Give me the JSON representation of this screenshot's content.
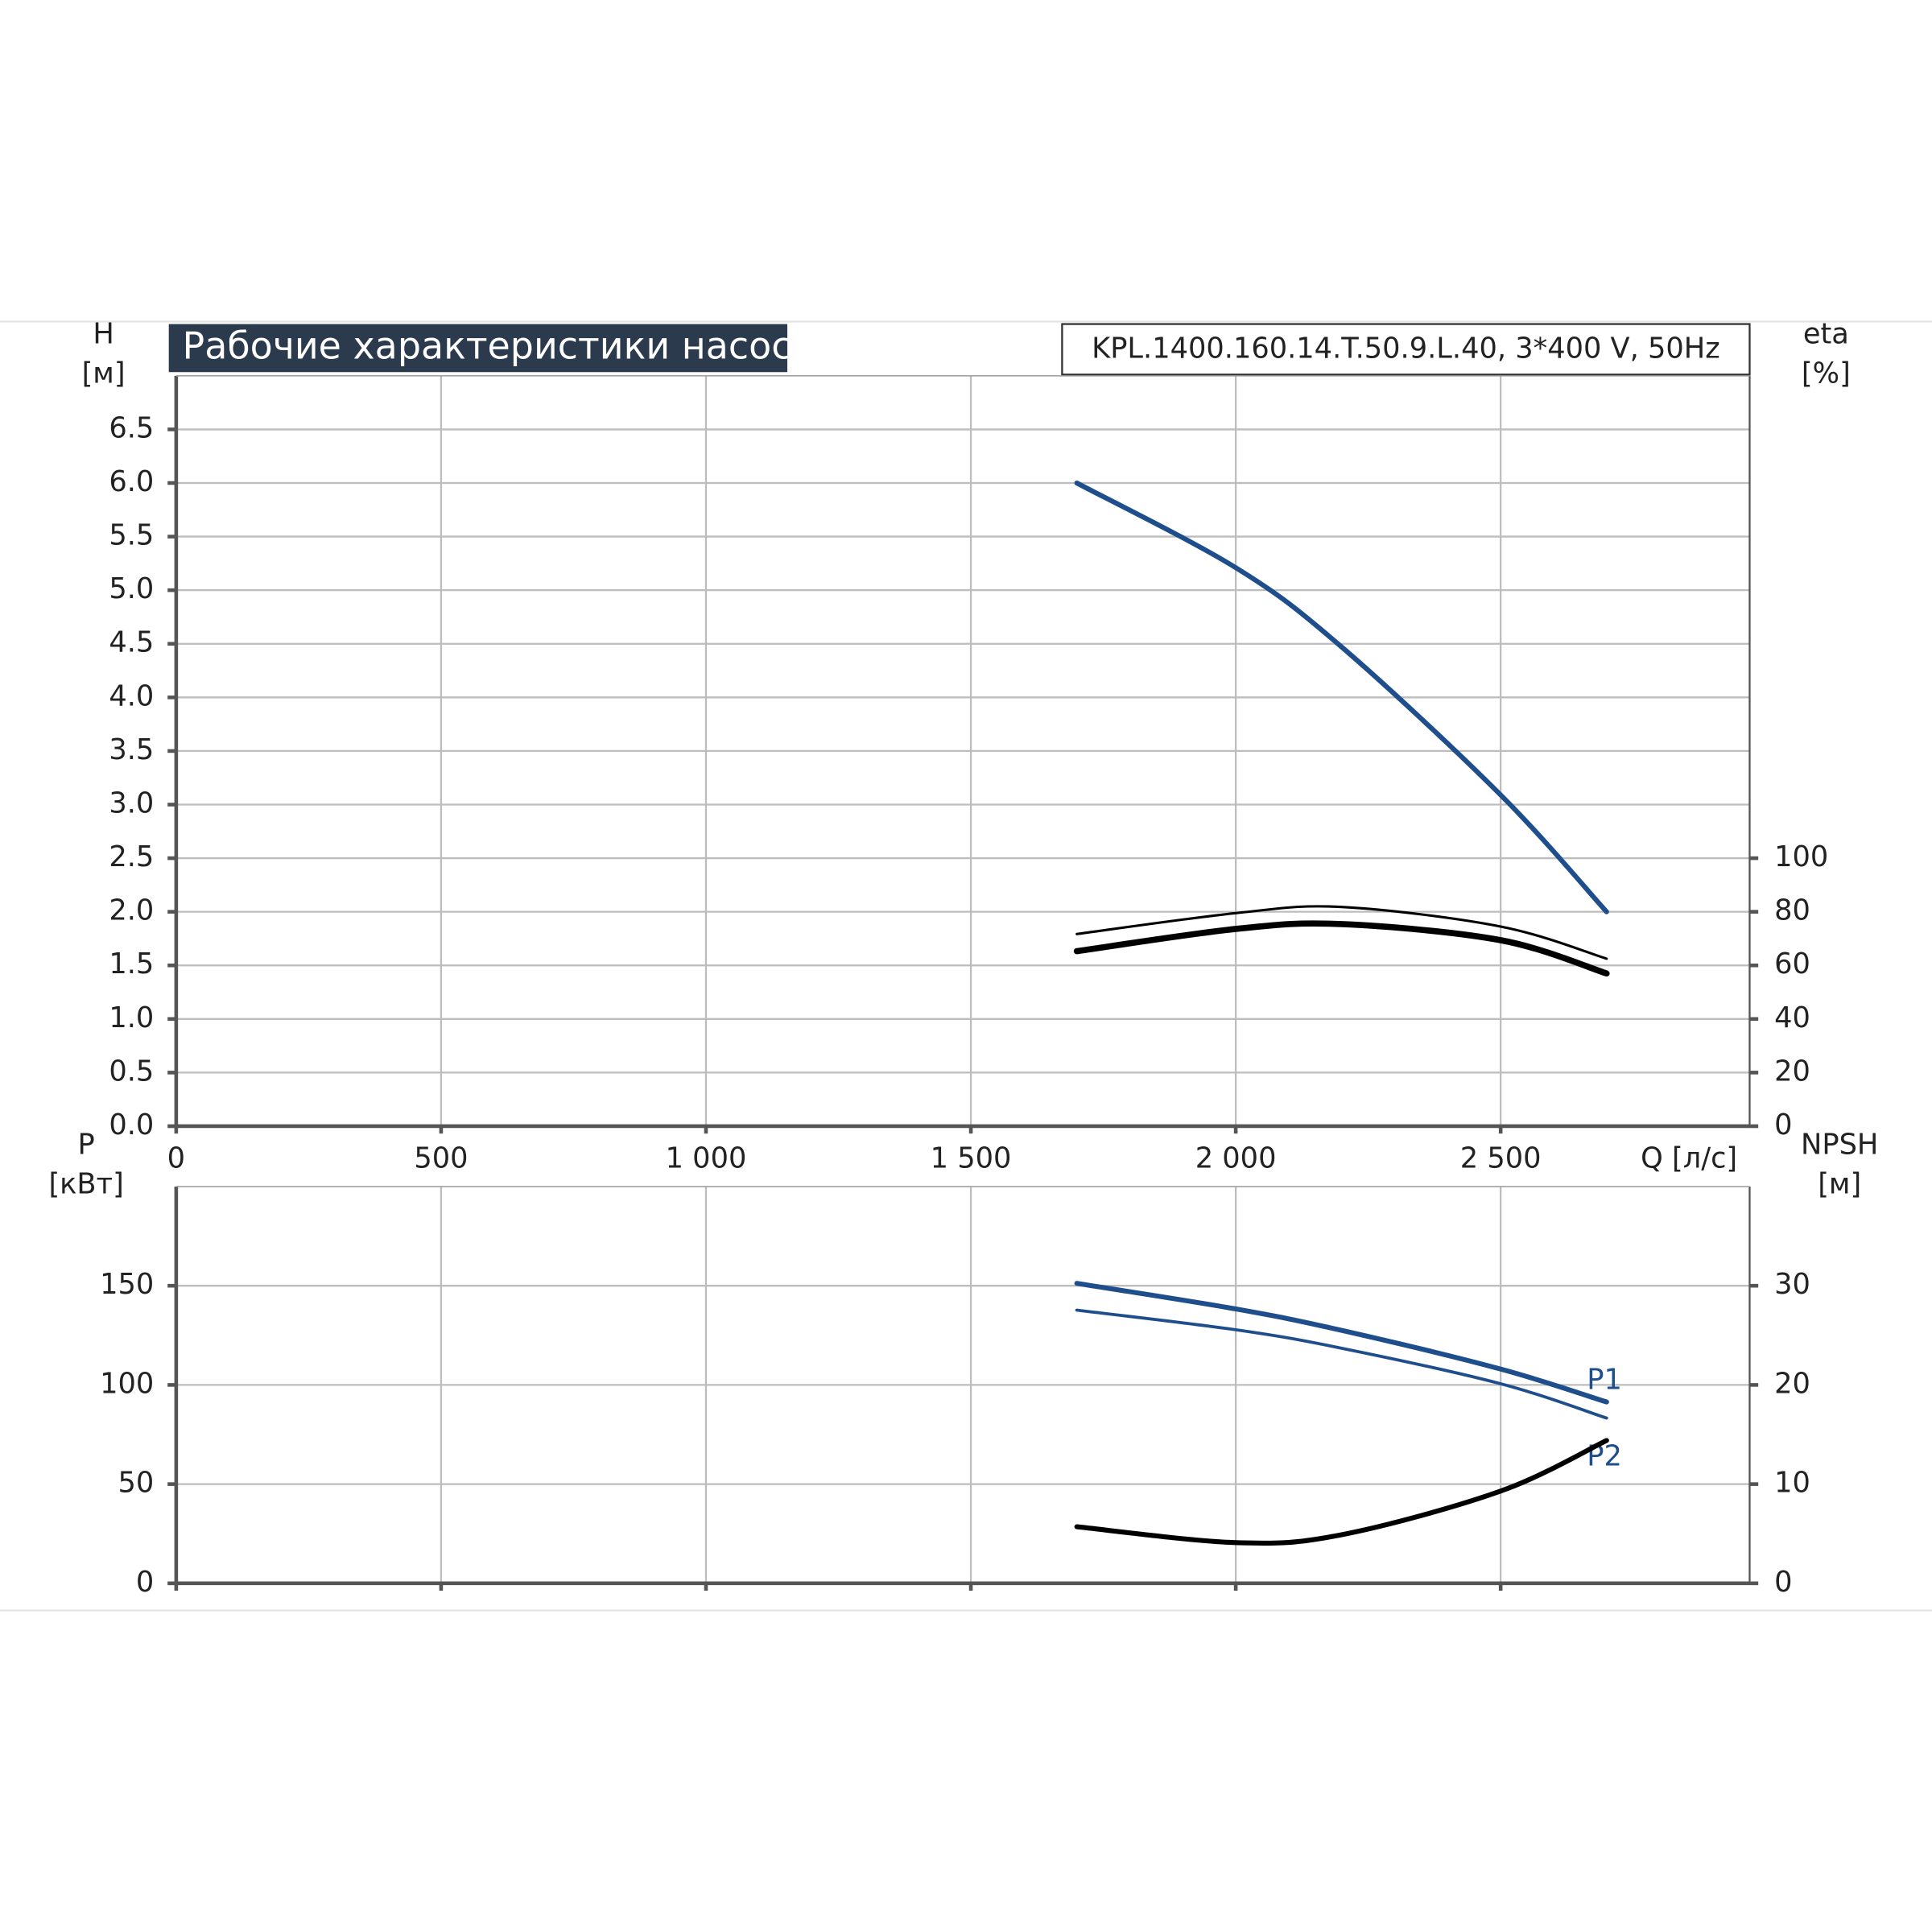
{
  "chart_data": [
    {
      "type": "line",
      "title": "Рабочие характеристики насоса",
      "subtitle": "KPL.1400.160.14.T.50.9.L.40, 3*400 V, 50Hz",
      "ylabel": [
        "H",
        "[м]"
      ],
      "y2label": [
        "eta",
        "[%]"
      ],
      "xlabel": "Q [л/с]",
      "xlim": [
        0,
        2970
      ],
      "xticks": [
        0,
        500,
        {
          "value": 1000,
          "label": "1 000"
        },
        {
          "value": 1500,
          "label": "1 500"
        },
        {
          "value": 2000,
          "label": "2 000"
        },
        {
          "value": 2500,
          "label": "2 500"
        }
      ],
      "xtick_labels": true,
      "ylim": [
        0,
        7
      ],
      "yticks": [
        {
          "value": 0,
          "label": "0.0"
        },
        0.5,
        {
          "value": 1,
          "label": "1.0"
        },
        1.5,
        {
          "value": 2,
          "label": "2.0"
        },
        2.5,
        {
          "value": 3,
          "label": "3.0"
        },
        3.5,
        {
          "value": 4,
          "label": "4.0"
        },
        4.5,
        {
          "value": 5,
          "label": "5.0"
        },
        5.5,
        {
          "value": 6,
          "label": "6.0"
        },
        6.5
      ],
      "y2lim": [
        0,
        280
      ],
      "y2ticks": [
        0,
        20,
        40,
        60,
        80,
        100
      ],
      "grid": true,
      "x": [
        1700,
        2000,
        2200,
        2500,
        2700
      ],
      "series": [
        {
          "color": "#1f4e8c",
          "line_width": 4,
          "values": [
            6.0,
            5.21,
            4.47,
            3.09,
            2.0
          ]
        },
        {
          "color": "#000000",
          "line_width": 2,
          "axis": "y2",
          "values": [
            71.7,
            79.5,
            81.8,
            74.5,
            62.5
          ]
        },
        {
          "color": "#000000",
          "line_width": 5,
          "axis": "y2",
          "values": [
            65.3,
            73.6,
            75.4,
            69.4,
            57.0
          ]
        }
      ]
    },
    {
      "type": "line",
      "ylabel": [
        "P",
        "[кВт]"
      ],
      "y2label": [
        "NPSH",
        "[м]"
      ],
      "xlim": [
        0,
        2970
      ],
      "xticks": [
        0,
        500,
        1000,
        1500,
        2000,
        2500
      ],
      "xtick_labels": false,
      "ylim": [
        0,
        200
      ],
      "yticks": [
        0,
        50,
        100,
        150
      ],
      "y2lim": [
        0,
        40
      ],
      "y2ticks": [
        0,
        10,
        20,
        30
      ],
      "grid": true,
      "x": [
        1700,
        2000,
        2200,
        2500,
        2700
      ],
      "series": [
        {
          "name": "P1",
          "color": "#1f4e8c",
          "line_width": 4,
          "values": [
            151.2,
            138.3,
            127.5,
            108.0,
            91.4
          ]
        },
        {
          "name": "P2",
          "color": "#1f4e8c",
          "line_width": 2.5,
          "values": [
            137.7,
            127.8,
            118.5,
            100.6,
            83.3
          ]
        },
        {
          "color": "#000000",
          "line_width": 4,
          "axis": "y2",
          "values": [
            5.7,
            4.1,
            4.9,
            9.3,
            14.4
          ]
        }
      ]
    }
  ]
}
